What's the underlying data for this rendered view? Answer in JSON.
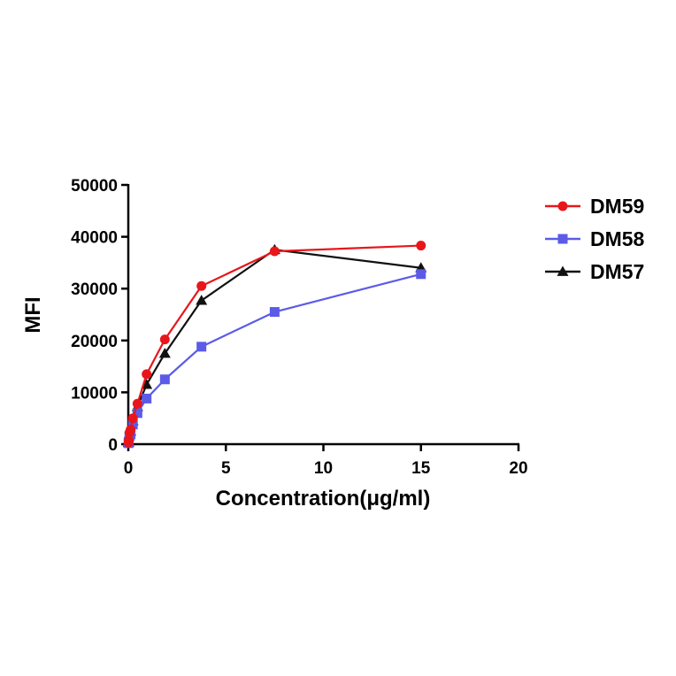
{
  "chart_data": {
    "type": "line",
    "title": "",
    "xlabel": "Concentration(μg/ml)",
    "ylabel": "MFI",
    "xlim": [
      0,
      20
    ],
    "ylim": [
      0,
      50000
    ],
    "xticks": [
      0,
      5,
      10,
      15,
      20
    ],
    "yticks": [
      0,
      10000,
      20000,
      30000,
      40000,
      50000
    ],
    "grid": false,
    "legend_position": "top-right",
    "series": [
      {
        "name": "DM59",
        "color": "#e8161b",
        "marker": "circle",
        "points": [
          [
            0.012,
            300
          ],
          [
            0.023,
            700
          ],
          [
            0.059,
            2200
          ],
          [
            0.117,
            2800
          ],
          [
            0.234,
            5000
          ],
          [
            0.469,
            7800
          ],
          [
            0.938,
            13500
          ],
          [
            1.875,
            20200
          ],
          [
            3.75,
            30500
          ],
          [
            7.5,
            37200
          ],
          [
            15,
            38300
          ]
        ]
      },
      {
        "name": "DM58",
        "color": "#5b5be8",
        "marker": "square",
        "points": [
          [
            0.012,
            200
          ],
          [
            0.023,
            500
          ],
          [
            0.059,
            1500
          ],
          [
            0.117,
            2000
          ],
          [
            0.234,
            3800
          ],
          [
            0.469,
            6000
          ],
          [
            0.938,
            8800
          ],
          [
            1.875,
            12500
          ],
          [
            3.75,
            18800
          ],
          [
            7.5,
            25500
          ],
          [
            15,
            32800
          ]
        ]
      },
      {
        "name": "DM57",
        "color": "#111111",
        "marker": "triangle",
        "points": [
          [
            0.012,
            300
          ],
          [
            0.023,
            600
          ],
          [
            0.059,
            1800
          ],
          [
            0.117,
            2500
          ],
          [
            0.234,
            4500
          ],
          [
            0.469,
            7200
          ],
          [
            0.938,
            11500
          ],
          [
            1.875,
            17500
          ],
          [
            3.75,
            27700
          ],
          [
            7.5,
            37500
          ],
          [
            15,
            34000
          ]
        ]
      }
    ]
  }
}
